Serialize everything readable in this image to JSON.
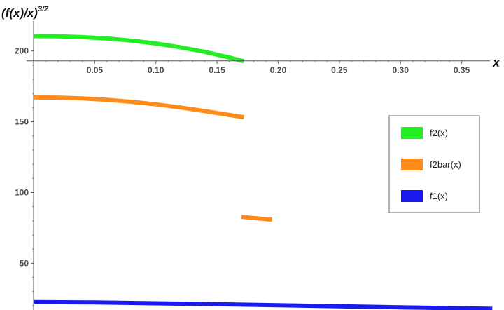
{
  "chart_data": {
    "type": "line",
    "ylabel": {
      "base": "(f(x)/x)",
      "exponent": "3/2"
    },
    "xlabel": "x",
    "xlim": [
      0,
      0.38
    ],
    "ylim": [
      17,
      236
    ],
    "x_axis_crossing_y": 193,
    "x_ticks": [
      0.05,
      0.1,
      0.15,
      0.2,
      0.25,
      0.3,
      0.35
    ],
    "x_tick_labels": [
      "0.05",
      "0.10",
      "0.15",
      "0.20",
      "0.25",
      "0.30",
      "0.35"
    ],
    "y_ticks": [
      50,
      100,
      150,
      200
    ],
    "y_tick_labels": [
      "50",
      "100",
      "150",
      "200"
    ],
    "legend_position": "right",
    "series": [
      {
        "name": "f2(x)",
        "color": "#22ee22",
        "segments": [
          [
            [
              0,
              210.5
            ],
            [
              0.02,
              210.4
            ],
            [
              0.04,
              209.8
            ],
            [
              0.06,
              208.8
            ],
            [
              0.08,
              207.3
            ],
            [
              0.1,
              205.3
            ],
            [
              0.12,
              202.6
            ],
            [
              0.14,
              199.4
            ],
            [
              0.16,
              195.4
            ],
            [
              0.172,
              192.7
            ]
          ]
        ]
      },
      {
        "name": "f2bar(x)",
        "color": "#ff8c1a",
        "segments": [
          [
            [
              0,
              167.2
            ],
            [
              0.02,
              167.1
            ],
            [
              0.04,
              166.5
            ],
            [
              0.06,
              165.5
            ],
            [
              0.08,
              164.1
            ],
            [
              0.1,
              162.3
            ],
            [
              0.12,
              160.1
            ],
            [
              0.14,
              157.5
            ],
            [
              0.16,
              154.8
            ],
            [
              0.172,
              153.2
            ]
          ],
          [
            [
              0.17,
              82.8
            ],
            [
              0.195,
              80.8
            ]
          ]
        ]
      },
      {
        "name": "f1(x)",
        "color": "#1a1aee",
        "segments": [
          [
            [
              0,
              22.6
            ],
            [
              0.05,
              22.3
            ],
            [
              0.1,
              21.7
            ],
            [
              0.15,
              21.1
            ],
            [
              0.2,
              20.3
            ],
            [
              0.25,
              19.6
            ],
            [
              0.3,
              18.9
            ],
            [
              0.35,
              18.2
            ],
            [
              0.375,
              17.8
            ]
          ]
        ]
      }
    ]
  }
}
